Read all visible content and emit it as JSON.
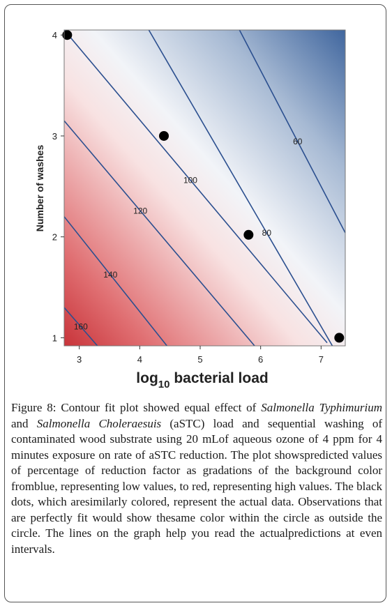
{
  "chart_data": {
    "type": "contour",
    "xlabel_main": "log",
    "xlabel_sub": "10",
    "xlabel_rest": " bacterial load",
    "ylabel": "Number of washes",
    "xlim": [
      2.75,
      7.4
    ],
    "ylim": [
      0.92,
      4.05
    ],
    "xticks": [
      "3",
      "4",
      "5",
      "6",
      "7"
    ],
    "xtick_values": [
      3,
      4,
      5,
      6,
      7
    ],
    "yticks": [
      "1",
      "2",
      "3",
      "4"
    ],
    "ytick_values": [
      1,
      2,
      3,
      4
    ],
    "contour_levels": [
      {
        "label": "60",
        "value": 60,
        "line": [
          [
            5.65,
            4.05
          ],
          [
            7.4,
            2.04
          ]
        ]
      },
      {
        "label": "80",
        "value": 80,
        "line": [
          [
            4.15,
            4.05
          ],
          [
            7.4,
            0.7
          ]
        ]
      },
      {
        "label": "100",
        "value": 100,
        "line": [
          [
            2.75,
            4.05
          ],
          [
            7.1,
            0.95
          ]
        ]
      },
      {
        "label": "120",
        "value": 120,
        "line": [
          [
            2.75,
            3.15
          ],
          [
            5.9,
            0.92
          ]
        ]
      },
      {
        "label": "140",
        "value": 140,
        "line": [
          [
            2.75,
            2.2
          ],
          [
            4.45,
            0.92
          ]
        ]
      },
      {
        "label": "160",
        "value": 160,
        "line": [
          [
            2.75,
            1.3
          ],
          [
            3.3,
            0.92
          ]
        ]
      }
    ],
    "points": [
      {
        "x": 2.8,
        "y": 4.0
      },
      {
        "x": 4.4,
        "y": 3.0
      },
      {
        "x": 5.8,
        "y": 2.02
      },
      {
        "x": 7.3,
        "y": 1.0
      }
    ],
    "colors": {
      "high": "#c8343a",
      "mid": "#ffffff",
      "low": "#40669e",
      "line": "#2b4f8f",
      "point": "#000000"
    }
  },
  "caption": {
    "figure_label": "Figure 8:",
    "part1": " Contour fit plot showed equal effect of ",
    "italic1": "Salmonella Typhimurium",
    "part2": " and ",
    "italic2": "Salmonella Choleraesuis",
    "part3": " (aSTC) load and sequential washing of contaminated wood substrate using 20 mLof aqueous ozone of 4 ppm for 4 minutes exposure on rate of aSTC reduction. The plot showspredicted values of percentage of reduction factor as gradations of the background color fromblue, representing low values, to red, representing high values. The black dots, which aresimilarly colored, represent the actual data. Observations that are perfectly fit would show thesame color within the circle as outside the circle. The lines on the graph help you read the actualpredictions at even intervals."
  }
}
